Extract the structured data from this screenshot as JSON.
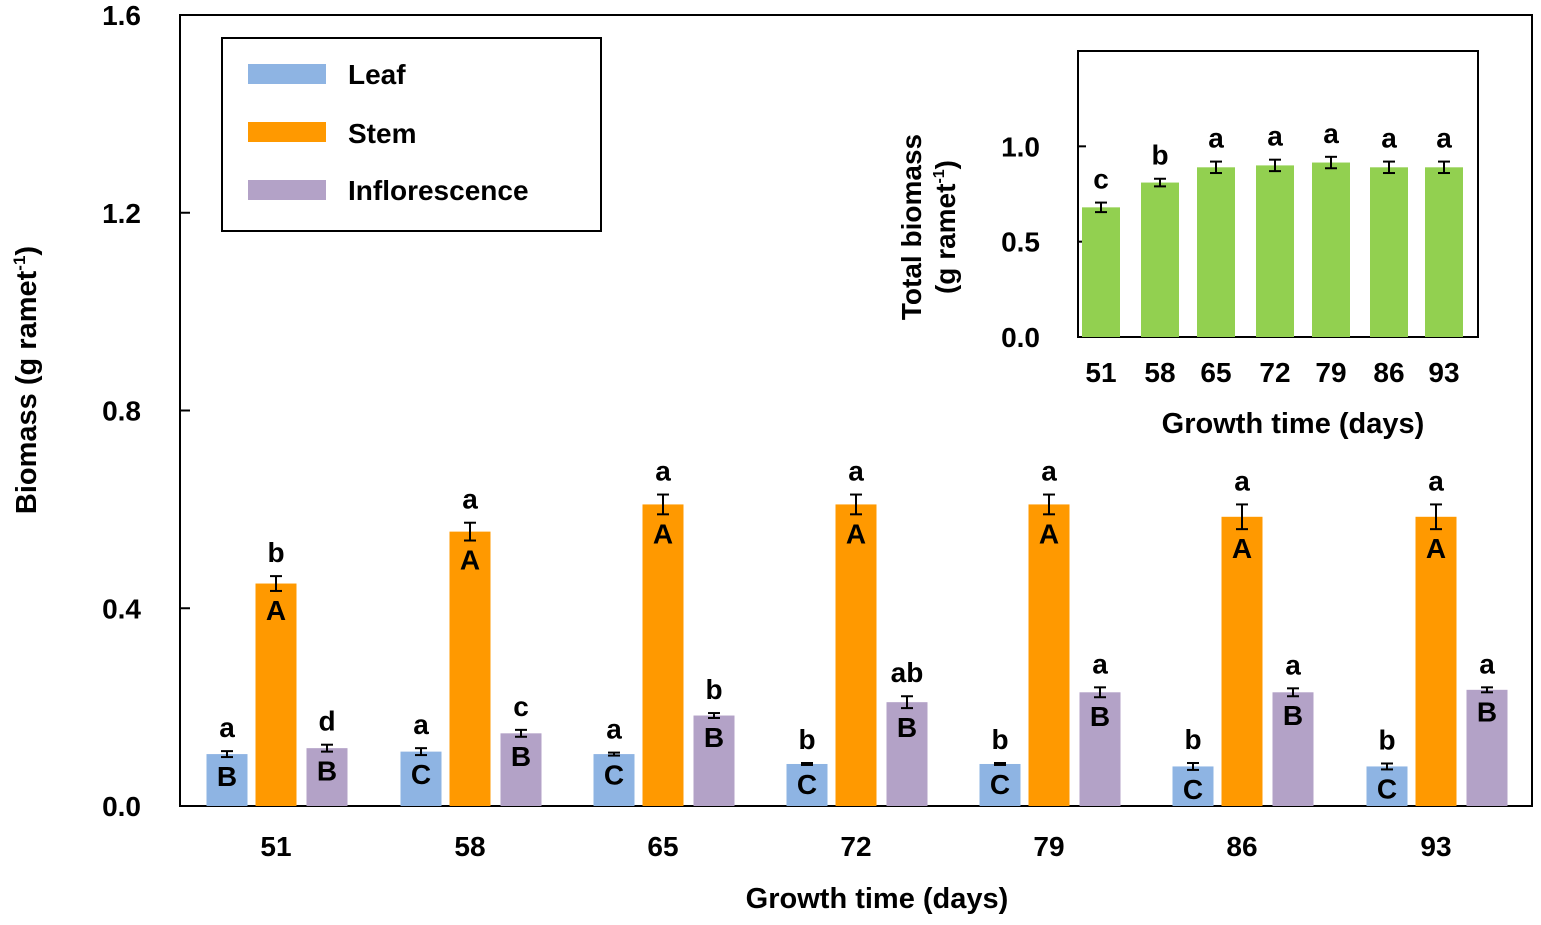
{
  "chart_data": [
    {
      "type": "bar",
      "title": "",
      "xlabel": "Growth time (days)",
      "ylabel_main": "Biomass (g ramet",
      "ylabel_sup": "-1",
      "ylabel_close": ")",
      "ylim": [
        0,
        1.6
      ],
      "yticks": [
        "0.0",
        "0.4",
        "0.8",
        "1.2",
        "1.6"
      ],
      "categories": [
        "51",
        "58",
        "65",
        "72",
        "79",
        "86",
        "93"
      ],
      "legend_position": "top-left",
      "series": [
        {
          "name": "Leaf",
          "color": "#8EB4E3",
          "values": [
            0.105,
            0.11,
            0.105,
            0.085,
            0.085,
            0.08,
            0.08
          ],
          "errors": [
            0.006,
            0.007,
            0.003,
            0.002,
            0.002,
            0.007,
            0.006
          ],
          "lower_letters": [
            "a",
            "a",
            "a",
            "b",
            "b",
            "b",
            "b"
          ],
          "upper_letters": [
            "B",
            "C",
            "C",
            "C",
            "C",
            "C",
            "C"
          ]
        },
        {
          "name": "Stem",
          "color": "#FF9900",
          "values": [
            0.45,
            0.555,
            0.61,
            0.61,
            0.61,
            0.585,
            0.585
          ],
          "errors": [
            0.015,
            0.018,
            0.02,
            0.02,
            0.02,
            0.025,
            0.025
          ],
          "lower_letters": [
            "b",
            "a",
            "a",
            "a",
            "a",
            "a",
            "a"
          ],
          "upper_letters": [
            "A",
            "A",
            "A",
            "A",
            "A",
            "A",
            "A"
          ]
        },
        {
          "name": "Inflorescence",
          "color": "#B3A2C7",
          "values": [
            0.117,
            0.147,
            0.183,
            0.21,
            0.23,
            0.23,
            0.235
          ],
          "errors": [
            0.007,
            0.007,
            0.005,
            0.012,
            0.01,
            0.008,
            0.005
          ],
          "lower_letters": [
            "d",
            "c",
            "b",
            "ab",
            "a",
            "a",
            "a"
          ],
          "upper_letters": [
            "B",
            "B",
            "B",
            "B",
            "B",
            "B",
            "B"
          ]
        }
      ]
    },
    {
      "type": "bar",
      "title": "",
      "xlabel": "Growth time (days)",
      "ylabel_line1": "Total biomass",
      "ylabel_line2_main": "(g ramet",
      "ylabel_line2_sup": "-1",
      "ylabel_line2_close": ")",
      "ylim": [
        0,
        1.5
      ],
      "yticks": [
        "0.0",
        "0.5",
        "1.0"
      ],
      "categories": [
        "51",
        "58",
        "65",
        "72",
        "79",
        "86",
        "93"
      ],
      "series": [
        {
          "name": "Total biomass",
          "color": "#92D050",
          "values": [
            0.68,
            0.81,
            0.89,
            0.9,
            0.915,
            0.89,
            0.89
          ],
          "errors": [
            0.025,
            0.02,
            0.03,
            0.03,
            0.03,
            0.03,
            0.03
          ],
          "letters": [
            "c",
            "b",
            "a",
            "a",
            "a",
            "a",
            "a"
          ]
        }
      ]
    }
  ]
}
